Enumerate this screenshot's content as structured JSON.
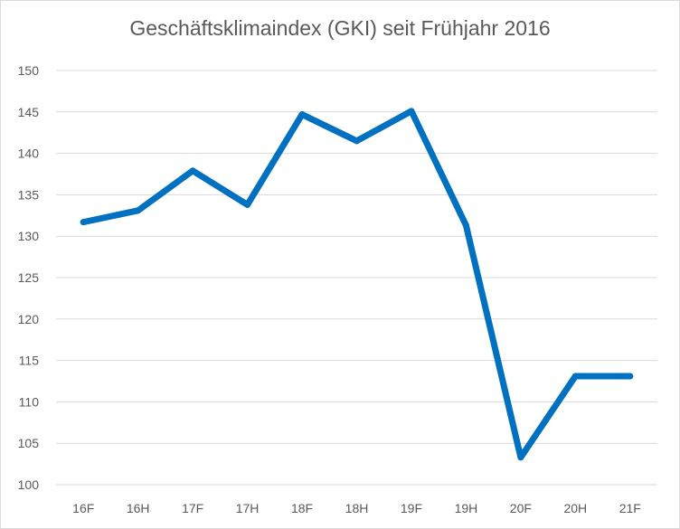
{
  "chart_data": {
    "type": "line",
    "title": "Geschäftsklimaindex (GKI) seit Frühjahr 2016",
    "categories": [
      "16F",
      "16H",
      "17F",
      "17H",
      "18F",
      "18H",
      "19F",
      "19H",
      "20F",
      "20H",
      "21F"
    ],
    "series": [
      {
        "values": [
          131.7,
          133.1,
          137.9,
          133.8,
          144.7,
          141.5,
          145.1,
          131.3,
          103.3,
          113.1,
          113.1
        ]
      }
    ],
    "ylim": [
      100,
      150
    ],
    "yticks": [
      100,
      105,
      110,
      115,
      120,
      125,
      130,
      135,
      140,
      145,
      150
    ],
    "grid": true,
    "legend": "none",
    "colors": {
      "series": "#0070c0",
      "grid": "#d9d9d9",
      "text": "#595959"
    }
  }
}
